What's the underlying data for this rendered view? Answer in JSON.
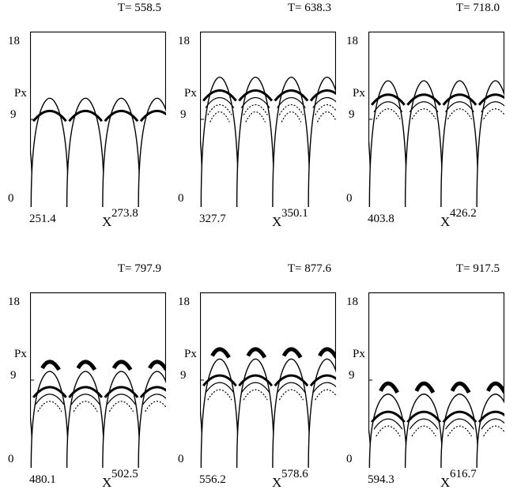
{
  "chart_data": [
    {
      "type": "line",
      "title": "T= 558.5",
      "ylabel": "Px",
      "xlabel": "X",
      "ylim": [
        0,
        18
      ],
      "yticks": [
        "0",
        "9",
        "18"
      ],
      "xlim": [
        251.4,
        273.8
      ],
      "xtick_labels": [
        "251.4",
        "273.8"
      ]
    },
    {
      "type": "line",
      "title": "T= 638.3",
      "ylabel": "Px",
      "xlabel": "X",
      "ylim": [
        0,
        18
      ],
      "yticks": [
        "0",
        "9",
        "18"
      ],
      "xlim": [
        327.7,
        350.1
      ],
      "xtick_labels": [
        "327.7",
        "350.1"
      ]
    },
    {
      "type": "line",
      "title": "T= 718.0",
      "ylabel": "Px",
      "xlabel": "X",
      "ylim": [
        0,
        18
      ],
      "yticks": [
        "0",
        "9",
        "18"
      ],
      "xlim": [
        403.8,
        426.2
      ],
      "xtick_labels": [
        "403.8",
        "426.2"
      ]
    },
    {
      "type": "line",
      "title": "T= 797.9",
      "ylabel": "Px",
      "xlabel": "X",
      "ylim": [
        0,
        18
      ],
      "yticks": [
        "0",
        "9",
        "18"
      ],
      "xlim": [
        480.1,
        502.5
      ],
      "xtick_labels": [
        "480.1",
        "502.5"
      ]
    },
    {
      "type": "line",
      "title": "T= 877.6",
      "ylabel": "Px",
      "xlabel": "X",
      "ylim": [
        0,
        18
      ],
      "yticks": [
        "0",
        "9",
        "18"
      ],
      "xlim": [
        556.2,
        578.6
      ],
      "xtick_labels": [
        "556.2",
        "578.6"
      ]
    },
    {
      "type": "line",
      "title": "T= 917.5",
      "ylabel": "Px",
      "xlabel": "X",
      "ylim": [
        0,
        18
      ],
      "yticks": [
        "0",
        "9",
        "18"
      ],
      "xlim": [
        594.3,
        616.7
      ],
      "xtick_labels": [
        "594.3",
        "616.7"
      ]
    }
  ]
}
